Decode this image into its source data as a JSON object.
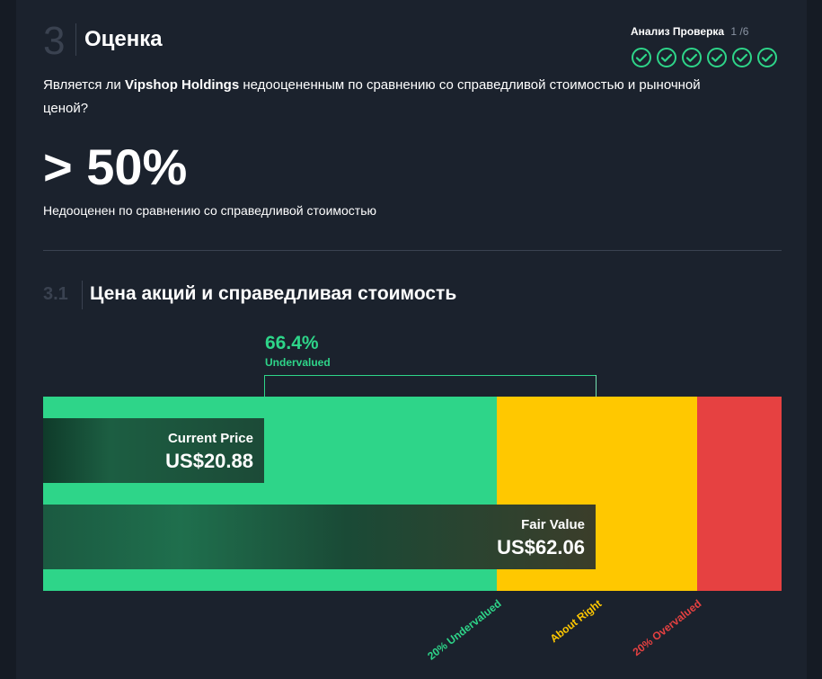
{
  "section": {
    "number": "3",
    "title": "Оценка",
    "checks_label": "Анализ Проверка",
    "checks_score": "1 /6",
    "checks_count": 6,
    "check_color": "#2ed589"
  },
  "question": {
    "prefix": "Является ли ",
    "company": "Vipshop Holdings",
    "suffix": " недооцененным по сравнению со справедливой стоимостью и рыночной ценой?"
  },
  "summary": {
    "value": "> 50%",
    "text": "Недооценен по сравнению со справедливой стоимостью"
  },
  "subsection": {
    "number": "3.1",
    "title": "Цена акций и справедливая стоимость"
  },
  "valuation": {
    "percent": "66.4%",
    "status": "Undervalued",
    "current_price_label": "Current Price",
    "current_price_value": "US$20.88",
    "fair_value_label": "Fair Value",
    "fair_value_value": "US$62.06",
    "zones": {
      "undervalued": "20% Undervalued",
      "about_right": "About Right",
      "overvalued": "20% Overvalued"
    },
    "colors": {
      "green": "#2ed589",
      "yellow": "#ffc800",
      "red": "#e64141"
    }
  }
}
